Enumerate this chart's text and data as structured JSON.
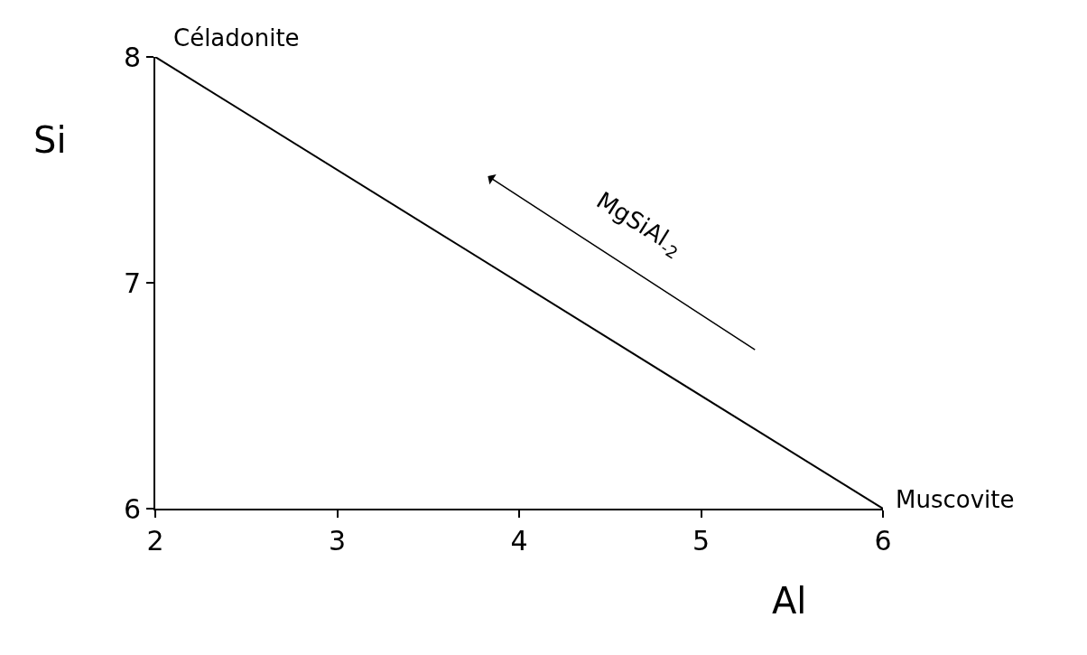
{
  "chart_data": {
    "type": "line",
    "xlabel": "Al",
    "ylabel": "Si",
    "x": [
      2,
      6
    ],
    "series": [
      {
        "color": "#000000",
        "values": [
          8,
          6
        ]
      }
    ],
    "xlim": [
      2,
      6
    ],
    "ylim": [
      6,
      8
    ],
    "xticks": [
      2,
      3,
      4,
      5,
      6
    ],
    "yticks": [
      6,
      7,
      8
    ],
    "marker": "none",
    "line_style": "solid",
    "annotations": [
      {
        "text": "Céladonite",
        "x": 2,
        "y": 8
      },
      {
        "text": "Muscovite",
        "x": 6,
        "y": 6
      },
      "MgSiAl$_{-2}$"
    ]
  }
}
